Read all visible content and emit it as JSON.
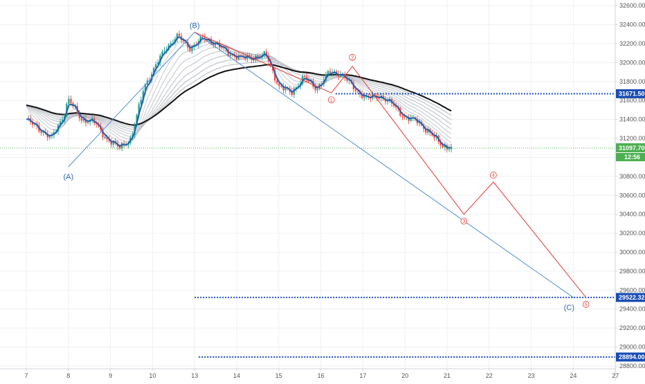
{
  "colors": {
    "background": "#ffffff",
    "grid": "#eef0f3",
    "axis": "#cfd3d8",
    "tick_text": "#555555",
    "candle_up": "#26a69a",
    "candle_down": "#ef5350",
    "price_line": "#1e5aa8",
    "ribbon": "#b8bcc2",
    "ribbon_dark": "#111111",
    "abc_wave": "#4f8fd0",
    "abc_label": "#2e6db4",
    "impulse_wave": "#e53935",
    "level_line": "#1a4db3",
    "level_label_bg": "#1a4db3",
    "current_price_line": "#4caf50",
    "current_price_bg": "#4caf50"
  },
  "chart_data": {
    "type": "line",
    "x_axis_ticks": [
      "7",
      "8",
      "9",
      "10",
      "13",
      "14",
      "15",
      "16",
      "17",
      "20",
      "21",
      "22",
      "23",
      "24",
      "27"
    ],
    "y_axis_ticks": [
      "32600.00",
      "32400.00",
      "32200.00",
      "32000.00",
      "31800.00",
      "31600.00",
      "31400.00",
      "31200.00",
      "31000.00",
      "30800.00",
      "30600.00",
      "30400.00",
      "30200.00",
      "30000.00",
      "29800.00",
      "29600.00",
      "29400.00",
      "29200.00",
      "29000.00",
      "28800.00"
    ],
    "ylim": [
      28770,
      32660
    ],
    "price_series": {
      "x": [
        0,
        0.3,
        0.6,
        0.9,
        1.0,
        1.3,
        1.6,
        1.9,
        2.2,
        2.5,
        2.8,
        3.0,
        3.3,
        3.6,
        3.9,
        4.2,
        4.5,
        4.8,
        5.1,
        5.4,
        5.7,
        6.0,
        6.3,
        6.6,
        6.9,
        7.2,
        7.5,
        7.8,
        8.1,
        8.4,
        8.7,
        9.0,
        9.3,
        9.6,
        9.9,
        10.1
      ],
      "y": [
        31400,
        31300,
        31200,
        31450,
        31620,
        31400,
        31380,
        31200,
        31100,
        31200,
        31750,
        31900,
        32150,
        32280,
        32150,
        32260,
        32200,
        32100,
        32050,
        32050,
        32080,
        31750,
        31680,
        31850,
        31720,
        31900,
        31880,
        31720,
        31620,
        31650,
        31560,
        31420,
        31380,
        31250,
        31120,
        31097.7
      ]
    },
    "abc_wave": {
      "points": [
        {
          "x": 1.0,
          "y": 30900
        },
        {
          "x": 4.0,
          "y": 32320
        },
        {
          "x": 13.0,
          "y": 29522
        }
      ],
      "labels": [
        "(A)",
        "(B)",
        "(C)"
      ]
    },
    "impulse_wave": {
      "points": [
        {
          "x": 4.0,
          "y": 32320
        },
        {
          "x": 7.25,
          "y": 31680
        },
        {
          "x": 7.75,
          "y": 31960
        },
        {
          "x": 10.4,
          "y": 30400
        },
        {
          "x": 11.1,
          "y": 30740
        },
        {
          "x": 13.3,
          "y": 29522
        }
      ],
      "labels": [
        "1",
        "2",
        "3",
        "4",
        "5"
      ]
    },
    "levels": [
      {
        "price": 31671.5,
        "label": "31671.50",
        "from_x": 7.35
      },
      {
        "price": 29522.32,
        "label": "29522.32",
        "from_x": 4.0
      },
      {
        "price": 28894.0,
        "label": "28894.00",
        "from_x": 4.1
      }
    ],
    "current_price": {
      "value": "31097.70",
      "countdown": "12:56"
    }
  }
}
